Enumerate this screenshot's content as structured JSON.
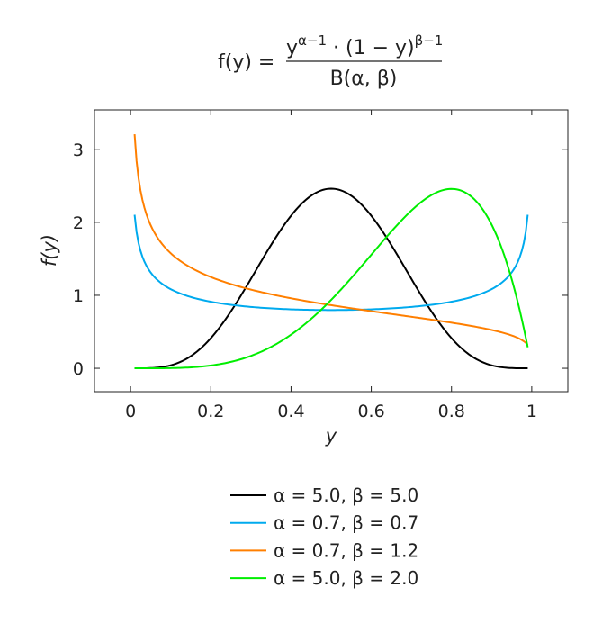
{
  "chart_data": {
    "type": "line",
    "title": {
      "lhs": "f(y) =",
      "num_y": "y",
      "num_sup1": "α−1",
      "num_mid": " · (1 − y)",
      "num_sup2": "β−1",
      "den": "B(α, β)"
    },
    "xlabel": "y",
    "ylabel": "f(y)",
    "xlim": [
      -0.09,
      1.09
    ],
    "ylim": [
      -0.32,
      3.54
    ],
    "xticks": [
      0,
      0.2,
      0.4,
      0.6,
      0.8,
      1
    ],
    "xtick_labels": [
      "0",
      "0.2",
      "0.4",
      "0.6",
      "0.8",
      "1"
    ],
    "yticks": [
      0,
      1,
      2,
      3
    ],
    "ytick_labels": [
      "0",
      "1",
      "2",
      "3"
    ],
    "domain": [
      0.01,
      0.99
    ],
    "grid": false,
    "legend_position": "bottom",
    "series": [
      {
        "name": "α = 5.0, β = 5.0",
        "alpha": 5.0,
        "beta": 5.0,
        "color": "#000000"
      },
      {
        "name": "α = 0.7, β = 0.7",
        "alpha": 0.7,
        "beta": 0.7,
        "color": "#00aaee"
      },
      {
        "name": "α = 0.7, β = 1.2",
        "alpha": 0.7,
        "beta": 1.2,
        "color": "#ff7f00"
      },
      {
        "name": "α = 5.0, β = 2.0",
        "alpha": 5.0,
        "beta": 2.0,
        "color": "#00ee00"
      }
    ]
  }
}
